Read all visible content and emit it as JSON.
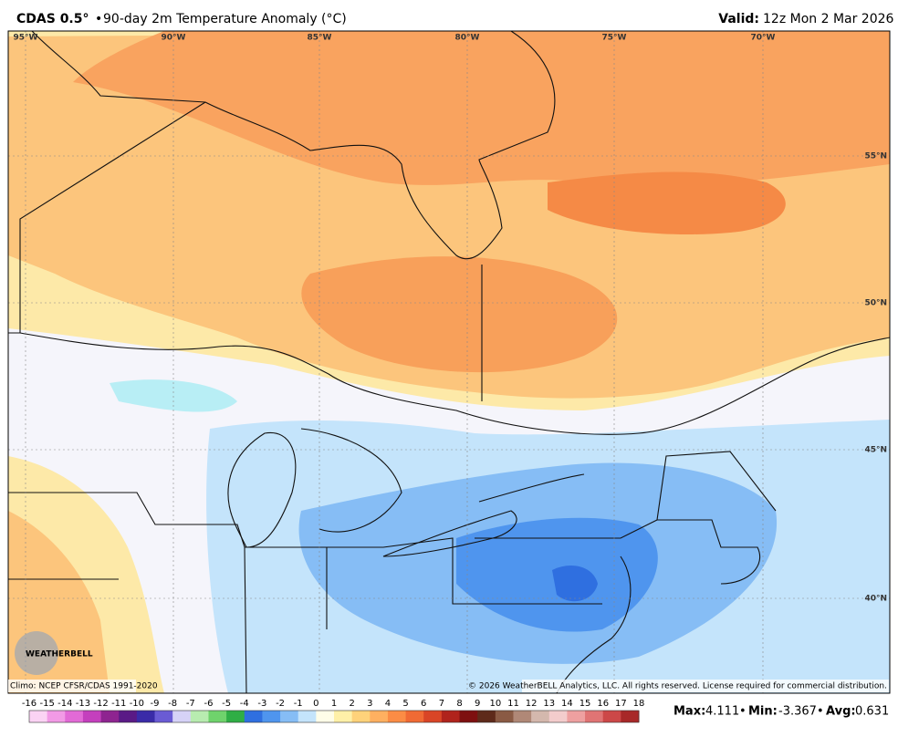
{
  "header": {
    "title": "CDAS 0.5°",
    "subtitle": "90-day 2m Temperature Anomaly (°C)",
    "valid_label": "Valid:",
    "valid_value": "12z Mon 2 Mar 2026"
  },
  "map": {
    "lon_labels": [
      "95°W",
      "90°W",
      "85°W",
      "80°W",
      "75°W",
      "70°W"
    ],
    "lat_labels": [
      "55°N",
      "50°N",
      "45°N",
      "40°N"
    ],
    "climo": "Climo: NCEP CFSR/CDAS 1991-2020",
    "copyright": "© 2026 WeatherBELL Analytics, LLC. All rights reserved. License required for commercial distribution.",
    "logo": "WEATHERBELL"
  },
  "colorbar": {
    "ticks": [
      -16,
      -15,
      -14,
      -13,
      -12,
      -11,
      -10,
      -9,
      -8,
      -7,
      -6,
      -5,
      -4,
      -3,
      -2,
      -1,
      0,
      1,
      2,
      3,
      4,
      5,
      6,
      7,
      8,
      9,
      10,
      11,
      12,
      13,
      14,
      15,
      16,
      17,
      18
    ],
    "colors": [
      "#fbd3f4",
      "#f29ae6",
      "#e26ad6",
      "#c43fbd",
      "#8e2490",
      "#5a1a86",
      "#3a2ba8",
      "#6a5bd4",
      "#d6d2f7",
      "#b8ecb0",
      "#6fd36c",
      "#2fae45",
      "#2f6fe0",
      "#4f95ee",
      "#86bdf5",
      "#c4e4fb",
      "#fffde8",
      "#fff0a8",
      "#ffd27a",
      "#ffb060",
      "#fb8c45",
      "#f06a34",
      "#d94526",
      "#b0231c",
      "#7e1010",
      "#5e2a1a",
      "#8a5a44",
      "#b08877",
      "#d4b8ad",
      "#f3cccc",
      "#eea0a0",
      "#e07474",
      "#cc4848",
      "#a82828"
    ]
  },
  "stats": {
    "max_label": "Max:",
    "max": 4.111,
    "min_label": "Min:",
    "min": -3.367,
    "avg_label": "Avg:",
    "avg": 0.631
  }
}
